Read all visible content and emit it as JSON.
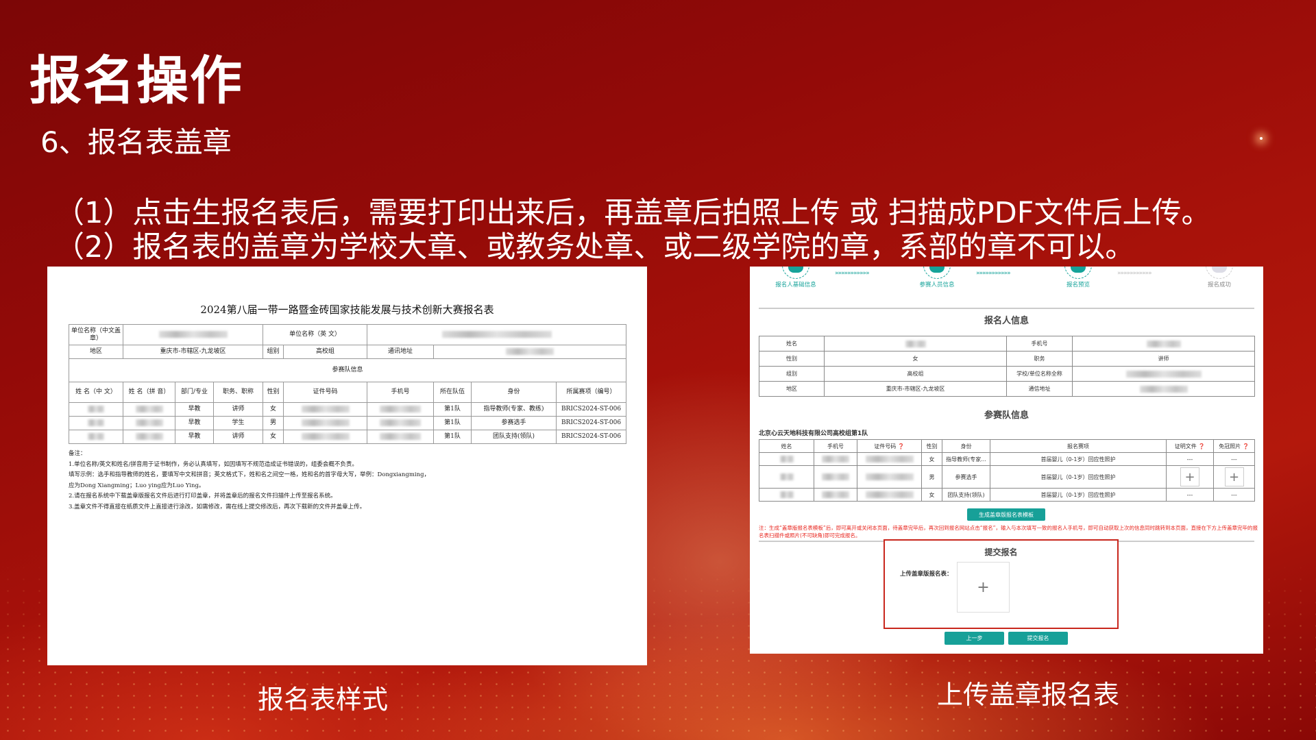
{
  "slide": {
    "title": "报名操作",
    "subtitle": "6、报名表盖章",
    "instructions": [
      "（1）点击生报名表后，需要打印出来后，再盖章后拍照上传 或 扫描成PDF文件后上传。",
      "（2）报名表的盖章为学校大章、或教务处章、或二级学院的章，系部的章不可以。"
    ],
    "caption_left": "报名表样式",
    "caption_right": "上传盖章报名表",
    "accent_color": "#a8120a"
  },
  "form_sample": {
    "title": "2024第八届一带一路暨金砖国家技能发展与技术创新大赛报名表",
    "unit_cn_label": "单位名称（中文盖章）",
    "unit_en_label": "单位名称（英 文）",
    "region_label": "地区",
    "region_value": "重庆市-市辖区-九龙坡区",
    "group_label": "组别",
    "group_value": "高校组",
    "address_label": "通讯地址",
    "team_section": "参赛队信息",
    "headers": [
      "姓 名（中 文）",
      "姓 名（拼 音）",
      "部门/专业",
      "职务、职称",
      "性别",
      "证件号码",
      "手机号",
      "所在队伍",
      "身份",
      "所属赛项（编号）"
    ],
    "rows": [
      {
        "dept": "早教",
        "title": "讲师",
        "gender": "女",
        "team": "第1队",
        "role": "指导教师(专家、教练)",
        "event": "BRICS2024-ST-006"
      },
      {
        "dept": "早教",
        "title": "学生",
        "gender": "男",
        "team": "第1队",
        "role": "参赛选手",
        "event": "BRICS2024-ST-006"
      },
      {
        "dept": "早教",
        "title": "讲师",
        "gender": "女",
        "team": "第1队",
        "role": "团队支持(领队)",
        "event": "BRICS2024-ST-006"
      }
    ],
    "notes": [
      "备注：",
      "1.单位名称/英文和姓名/拼音用于证书制作，务必认真填写，如因填写不规范造成证书错误的，组委会概不负责。",
      "填写示例：选手和指导教师的姓名，要填写中文和拼音；英文格式下，姓和名之间空一格，姓和名的首字母大写，举例：Dongxiangming，",
      "应为Dong Xiangming；Luo ying应为Luo Ying。",
      "2.请在报名系统中下载盖章版报名文件后进行打印盖章，并将盖章后的报名文件扫描件上传至报名系统。",
      "3.盖章文件不得直接在纸质文件上直接进行涂改，如需修改，需在线上提交修改后，再次下载新的文件并盖章上传。"
    ]
  },
  "upload_page": {
    "steps": [
      {
        "label": "报名人基础信息",
        "active": true
      },
      {
        "label": "参赛人员信息",
        "active": true
      },
      {
        "label": "报名预览",
        "active": true
      },
      {
        "label": "报名成功",
        "active": false
      }
    ],
    "arrows": "»»»»»»»»»»»",
    "applicant_title": "报名人信息",
    "applicant": [
      [
        "姓名",
        "",
        "手机号",
        ""
      ],
      [
        "性别",
        "女",
        "职务",
        "讲师"
      ],
      [
        "组别",
        "高校组",
        "学校/单位名称全称",
        ""
      ],
      [
        "地区",
        "重庆市-市辖区-九龙坡区",
        "通信地址",
        ""
      ]
    ],
    "team_title": "参赛队信息",
    "team_name": "北京心云天地科技有限公司高校组第1队",
    "team_headers": [
      "姓名",
      "手机号",
      "证件号码 ❓",
      "性别",
      "身份",
      "报名赛项",
      "证明文件 ❓",
      "免冠照片 ❓"
    ],
    "team_rows": [
      {
        "gender": "女",
        "role": "指导教师(专家...",
        "event": "首届婴儿（0-1岁）回应性照护",
        "proof": "---",
        "photo": "---"
      },
      {
        "gender": "男",
        "role": "参赛选手",
        "event": "首届婴儿（0-1岁）回应性照护",
        "proof": "+",
        "photo": "+"
      },
      {
        "gender": "女",
        "role": "团队支持(领队)",
        "event": "首届婴儿（0-1岁）回应性照护",
        "proof": "---",
        "photo": "---"
      }
    ],
    "generate_button": "生成盖章版报名表模板",
    "note": "注：生成“盖章版报名表模板”后，即可离开或关闭本页面，待盖章完毕后，再次回到报名网站点击“报名”，输入与本次填写一致的报名人手机号，即可自动获取上次的信息同时跳转到本页面，直接在下方上传盖章完毕的报名表扫描件或照片(不可缺角)即可完成报名。",
    "submit_title": "提交报名",
    "upload_label": "上传盖章版报名表：",
    "upload_plus": "+",
    "prev_button": "上一步",
    "submit_button": "提交报名",
    "teal_color": "#17a098",
    "highlight_color": "#c8261c"
  }
}
